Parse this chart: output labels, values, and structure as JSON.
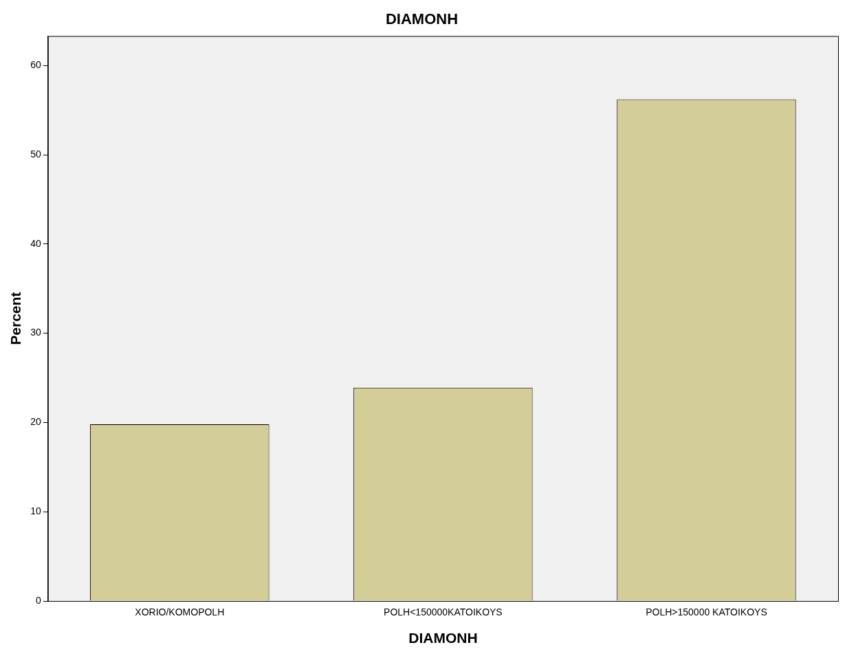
{
  "chart_data": {
    "type": "bar",
    "title": "DIAMONH",
    "xlabel": "DIAMONH",
    "ylabel": "Percent",
    "categories": [
      "XORIO/KOMOPOLH",
      "POLH<150000KATOIKOYS",
      "POLH>150000 KATOIKOYS"
    ],
    "values": [
      19.8,
      23.9,
      56.2
    ],
    "color": "#d3ce97",
    "ylim": [
      0,
      63.3
    ],
    "yticks": [
      0,
      10,
      20,
      30,
      40,
      50,
      60
    ],
    "grid": false,
    "legend": false
  }
}
